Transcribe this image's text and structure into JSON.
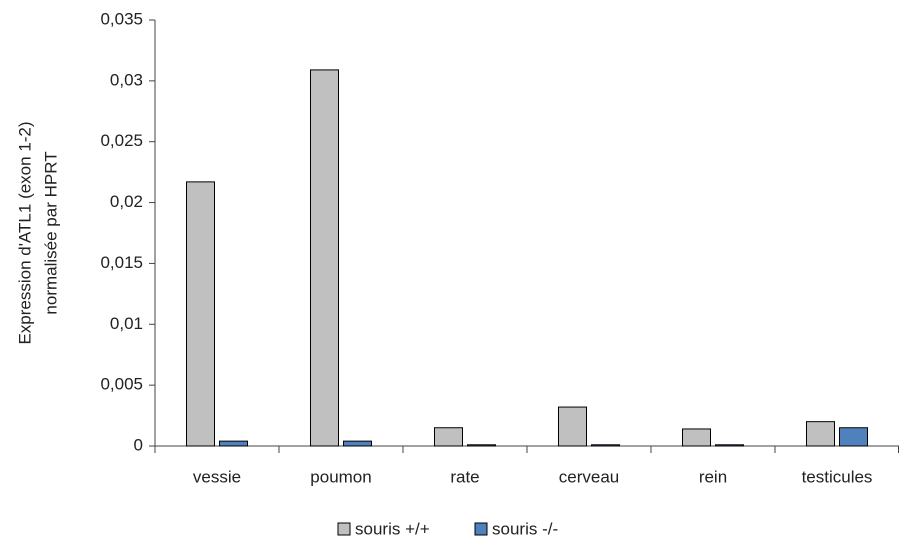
{
  "chart_data": {
    "type": "bar",
    "ylabel_lines": [
      "Expression d'ATL1 (exon 1-2)",
      "normalisée par HPRT"
    ],
    "categories": [
      "vessie",
      "poumon",
      "rate",
      "cerveau",
      "rein",
      "testicules"
    ],
    "series": [
      {
        "name": "souris +/+",
        "color": "#c0c0c0",
        "values": [
          0.0217,
          0.0309,
          0.0015,
          0.0032,
          0.0014,
          0.002
        ]
      },
      {
        "name": "souris -/-",
        "color": "#4f81bd",
        "values": [
          0.0004,
          0.0004,
          0.0001,
          0.0001,
          0.0001,
          0.0015
        ]
      }
    ],
    "ylim": [
      0,
      0.035
    ],
    "yticks": [
      0,
      {
        "value": 0.005,
        "label": "0,005"
      },
      {
        "value": 0.01,
        "label": "0,01"
      },
      {
        "value": 0.015,
        "label": "0,015"
      },
      {
        "value": 0.02,
        "label": "0,02"
      },
      {
        "value": 0.025,
        "label": "0,025"
      },
      {
        "value": 0.03,
        "label": "0,03"
      },
      {
        "value": 0.035,
        "label": "0,035"
      }
    ],
    "legend": "bottom"
  }
}
